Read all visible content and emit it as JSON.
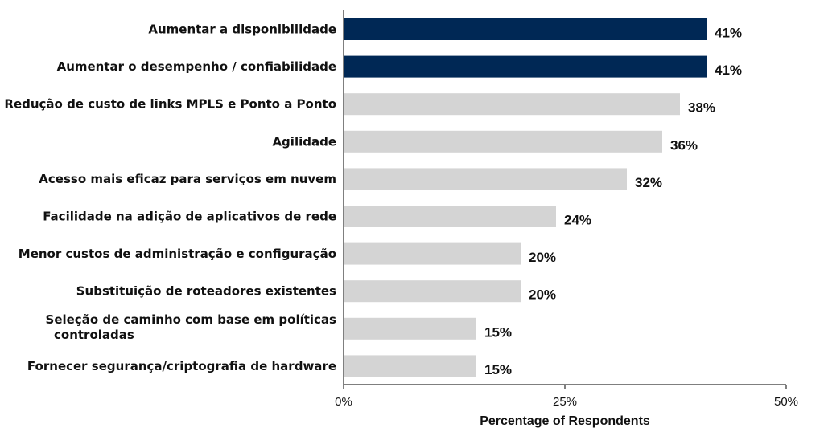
{
  "chart_data": {
    "type": "bar",
    "orientation": "horizontal",
    "title": "",
    "xlabel": "Percentage of Respondents",
    "ylabel": "",
    "xlim": [
      0,
      50
    ],
    "xticks": [
      0,
      25,
      50
    ],
    "xtick_labels": [
      "0%",
      "25%",
      "50%"
    ],
    "grid": false,
    "categories": [
      "Aumentar a disponibilidade",
      "Aumentar o desempenho / confiabilidade",
      "Redução de custo de links MPLS e Ponto a Ponto",
      "Agilidade",
      "Acesso mais eficaz para serviços em nuvem",
      "Facilidade na adição de aplicativos de rede",
      "Menor custos de administração e configuração",
      "Substituição de roteadores existentes",
      "Seleção de caminho com base em políticas controladas",
      "Fornecer segurança/criptografia de hardware"
    ],
    "category_lines": [
      [
        "Aumentar a disponibilidade"
      ],
      [
        "Aumentar o desempenho / confiabilidade"
      ],
      [
        "Redução de custo de links MPLS e Ponto a Ponto"
      ],
      [
        "Agilidade"
      ],
      [
        "Acesso mais eficaz para serviços em nuvem"
      ],
      [
        "Facilidade na adição de aplicativos de rede"
      ],
      [
        "Menor custos de administração e configuração"
      ],
      [
        "Substituição de roteadores existentes"
      ],
      [
        "Seleção de caminho com base em políticas",
        "controladas"
      ],
      [
        "Fornecer segurança/criptografia de hardware"
      ]
    ],
    "values": [
      41,
      41,
      38,
      36,
      32,
      24,
      20,
      20,
      15,
      15
    ],
    "value_labels": [
      "41%",
      "41%",
      "38%",
      "36%",
      "32%",
      "24%",
      "20%",
      "20%",
      "15%",
      "15%"
    ],
    "highlighted": [
      true,
      true,
      false,
      false,
      false,
      false,
      false,
      false,
      false,
      false
    ],
    "colors": {
      "highlight": "#002855",
      "normal": "#d4d4d4",
      "axis": "#555555",
      "text": "#111111"
    }
  }
}
